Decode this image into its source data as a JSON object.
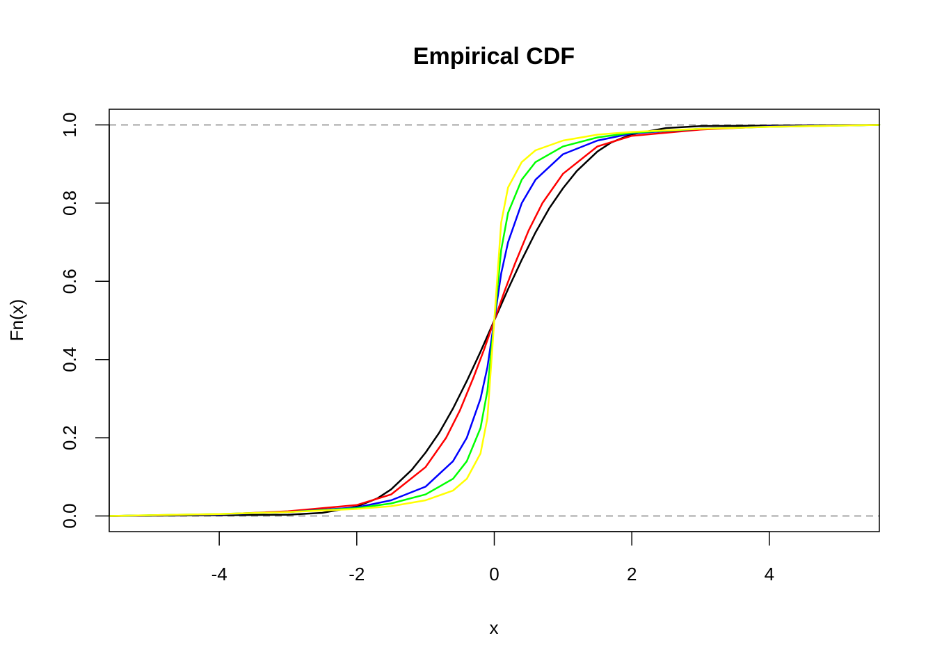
{
  "chart_data": {
    "type": "line",
    "title": "Empirical CDF",
    "xlabel": "x",
    "ylabel": "Fn(x)",
    "xlim": [
      -5.6,
      5.6
    ],
    "ylim": [
      -0.04,
      1.04
    ],
    "x_ticks": [
      -4,
      -2,
      0,
      2,
      4
    ],
    "x_tick_labels": [
      "-4",
      "-2",
      "0",
      "2",
      "4"
    ],
    "y_ticks": [
      0.0,
      0.2,
      0.4,
      0.6,
      0.8,
      1.0
    ],
    "y_tick_labels": [
      "0.0",
      "0.2",
      "0.4",
      "0.6",
      "0.8",
      "1.0"
    ],
    "reference_lines": [
      {
        "y": 0.0,
        "style": "dashed",
        "color": "#a6a6a6"
      },
      {
        "y": 1.0,
        "style": "dashed",
        "color": "#a6a6a6"
      }
    ],
    "grid": false,
    "legend": "none",
    "series": [
      {
        "color": "#000000",
        "x": [
          -5.6,
          -3.0,
          -2.5,
          -2.0,
          -1.7,
          -1.5,
          -1.2,
          -1.0,
          -0.8,
          -0.6,
          -0.4,
          -0.2,
          0.0,
          0.2,
          0.4,
          0.6,
          0.8,
          1.0,
          1.2,
          1.5,
          1.7,
          2.0,
          2.5,
          3.0,
          5.6
        ],
        "y": [
          0.0,
          0.003,
          0.008,
          0.024,
          0.045,
          0.068,
          0.118,
          0.162,
          0.213,
          0.275,
          0.345,
          0.42,
          0.5,
          0.58,
          0.655,
          0.725,
          0.787,
          0.838,
          0.882,
          0.932,
          0.955,
          0.976,
          0.992,
          0.997,
          1.0
        ]
      },
      {
        "color": "#ff0000",
        "x": [
          -5.6,
          -4.0,
          -3.0,
          -2.0,
          -1.5,
          -1.0,
          -0.7,
          -0.5,
          -0.3,
          -0.15,
          0.0,
          0.15,
          0.3,
          0.5,
          0.7,
          1.0,
          1.5,
          2.0,
          3.0,
          4.0,
          5.6
        ],
        "y": [
          0.0,
          0.004,
          0.012,
          0.028,
          0.055,
          0.125,
          0.2,
          0.27,
          0.355,
          0.425,
          0.5,
          0.575,
          0.645,
          0.73,
          0.8,
          0.875,
          0.945,
          0.972,
          0.988,
          0.996,
          1.0
        ]
      },
      {
        "color": "#0000ff",
        "x": [
          -5.6,
          -4.0,
          -3.0,
          -2.0,
          -1.5,
          -1.0,
          -0.6,
          -0.4,
          -0.2,
          -0.1,
          0.0,
          0.1,
          0.2,
          0.4,
          0.6,
          1.0,
          1.5,
          2.0,
          3.0,
          4.0,
          5.6
        ],
        "y": [
          0.0,
          0.004,
          0.01,
          0.022,
          0.04,
          0.075,
          0.14,
          0.2,
          0.3,
          0.38,
          0.5,
          0.62,
          0.7,
          0.8,
          0.86,
          0.925,
          0.96,
          0.978,
          0.99,
          0.996,
          1.0
        ]
      },
      {
        "color": "#00ff00",
        "x": [
          -5.6,
          -4.0,
          -3.0,
          -2.0,
          -1.5,
          -1.0,
          -0.6,
          -0.4,
          -0.2,
          -0.1,
          0.0,
          0.1,
          0.2,
          0.4,
          0.6,
          1.0,
          1.5,
          2.0,
          3.0,
          4.0,
          5.6
        ],
        "y": [
          0.0,
          0.005,
          0.01,
          0.02,
          0.032,
          0.055,
          0.095,
          0.14,
          0.225,
          0.32,
          0.5,
          0.68,
          0.775,
          0.86,
          0.905,
          0.945,
          0.968,
          0.98,
          0.99,
          0.995,
          1.0
        ]
      },
      {
        "color": "#ffff00",
        "x": [
          -5.6,
          -4.0,
          -3.0,
          -2.0,
          -1.5,
          -1.0,
          -0.6,
          -0.4,
          -0.2,
          -0.1,
          0.0,
          0.1,
          0.2,
          0.4,
          0.6,
          1.0,
          1.5,
          2.0,
          3.0,
          4.0,
          5.6
        ],
        "y": [
          0.0,
          0.005,
          0.01,
          0.018,
          0.025,
          0.04,
          0.065,
          0.095,
          0.16,
          0.25,
          0.5,
          0.75,
          0.84,
          0.905,
          0.935,
          0.96,
          0.975,
          0.982,
          0.99,
          0.995,
          1.0
        ]
      }
    ]
  }
}
